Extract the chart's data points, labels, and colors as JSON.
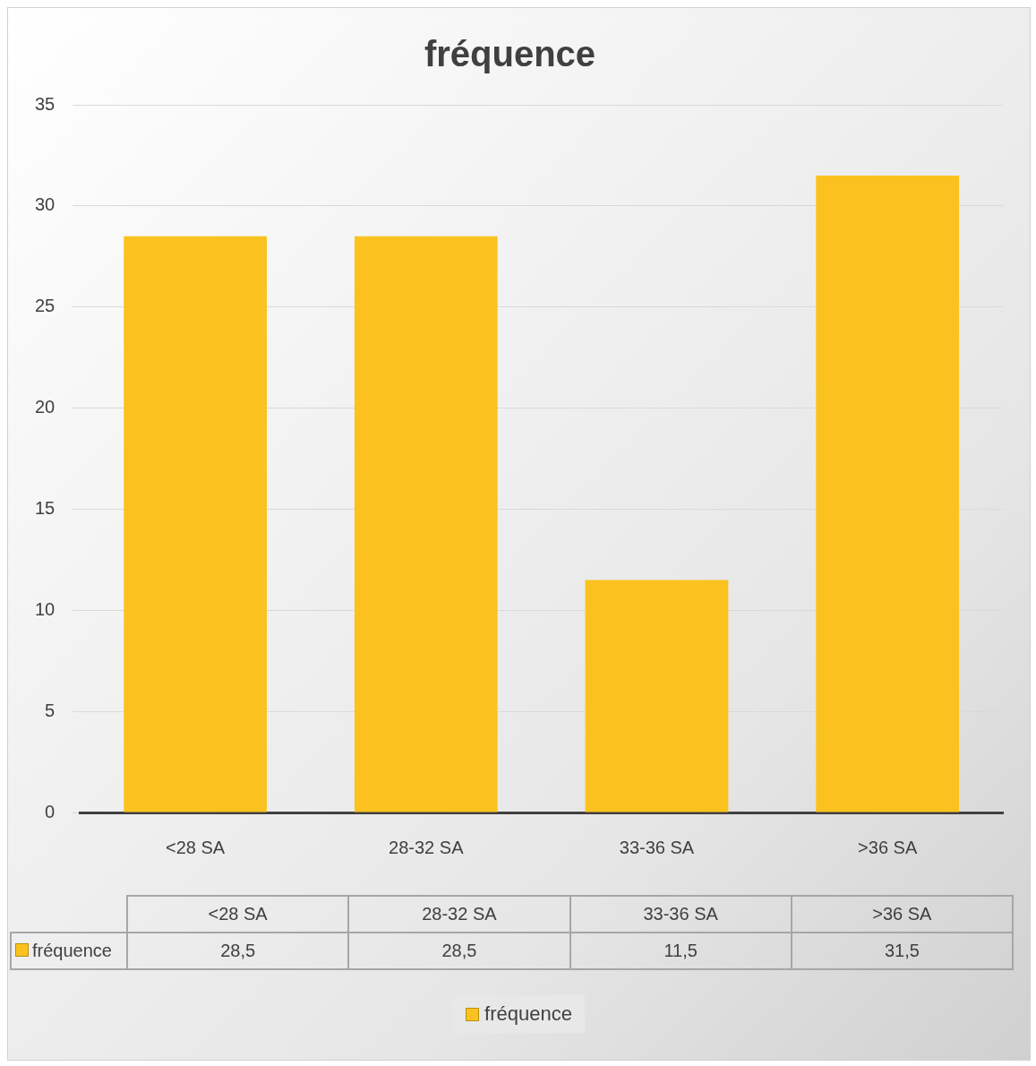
{
  "chart_data": {
    "type": "bar",
    "title": "fréquence",
    "categories": [
      "<28 SA",
      "28-32 SA",
      "33-36 SA",
      ">36 SA"
    ],
    "series": [
      {
        "name": "fréquence",
        "color": "#fbc21f",
        "values": [
          28.5,
          28.5,
          11.5,
          31.5
        ],
        "value_labels": [
          "28,5",
          "28,5",
          "11,5",
          "31,5"
        ]
      }
    ],
    "ylim": [
      0,
      35
    ],
    "yticks": [
      0,
      5,
      10,
      15,
      20,
      25,
      30,
      35
    ],
    "grid": "y",
    "legend": "bottom"
  }
}
